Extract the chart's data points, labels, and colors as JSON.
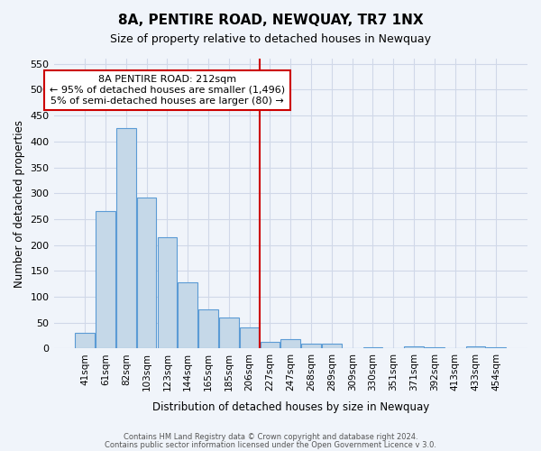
{
  "title": "8A, PENTIRE ROAD, NEWQUAY, TR7 1NX",
  "subtitle": "Size of property relative to detached houses in Newquay",
  "xlabel": "Distribution of detached houses by size in Newquay",
  "ylabel": "Number of detached properties",
  "bin_labels": [
    "41sqm",
    "61sqm",
    "82sqm",
    "103sqm",
    "123sqm",
    "144sqm",
    "165sqm",
    "185sqm",
    "206sqm",
    "227sqm",
    "247sqm",
    "268sqm",
    "289sqm",
    "309sqm",
    "330sqm",
    "351sqm",
    "371sqm",
    "392sqm",
    "413sqm",
    "433sqm",
    "454sqm"
  ],
  "bar_heights": [
    30,
    265,
    425,
    291,
    215,
    128,
    75,
    60,
    40,
    13,
    18,
    9,
    10,
    0,
    3,
    0,
    5,
    3,
    0,
    5,
    3
  ],
  "bar_color": "#c5d8e8",
  "bar_edge_color": "#5b9bd5",
  "vline_pos": 8.48,
  "vline_color": "#cc0000",
  "ylim": [
    0,
    560
  ],
  "yticks": [
    0,
    50,
    100,
    150,
    200,
    250,
    300,
    350,
    400,
    450,
    500,
    550
  ],
  "annotation_title": "8A PENTIRE ROAD: 212sqm",
  "annotation_line1": "← 95% of detached houses are smaller (1,496)",
  "annotation_line2": "5% of semi-detached houses are larger (80) →",
  "footer_line1": "Contains HM Land Registry data © Crown copyright and database right 2024.",
  "footer_line2": "Contains public sector information licensed under the Open Government Licence v 3.0.",
  "grid_color": "#d0d8e8",
  "bg_color": "#f0f4fa"
}
